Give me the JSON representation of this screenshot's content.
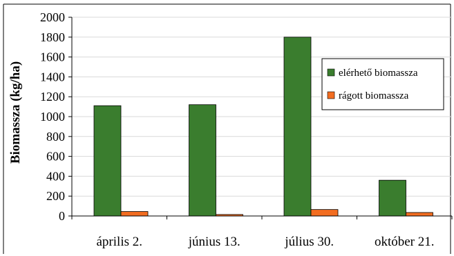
{
  "chart_data": {
    "type": "bar",
    "title": "",
    "xlabel": "",
    "ylabel": "Biomassza (kg/ha)",
    "ylim": [
      0,
      2000
    ],
    "yticks": [
      0,
      200,
      400,
      600,
      800,
      1000,
      1200,
      1400,
      1600,
      1800,
      2000
    ],
    "grid": true,
    "legend_position": "right",
    "categories": [
      "április 2.",
      "június 13.",
      "július 30.",
      "október 21."
    ],
    "series": [
      {
        "name": "elérhető biomassza",
        "color": "#3a7d2e",
        "values": [
          1110,
          1120,
          1800,
          360
        ]
      },
      {
        "name": "rágott biomassza",
        "color": "#f26d21",
        "values": [
          45,
          15,
          65,
          35
        ]
      }
    ]
  }
}
